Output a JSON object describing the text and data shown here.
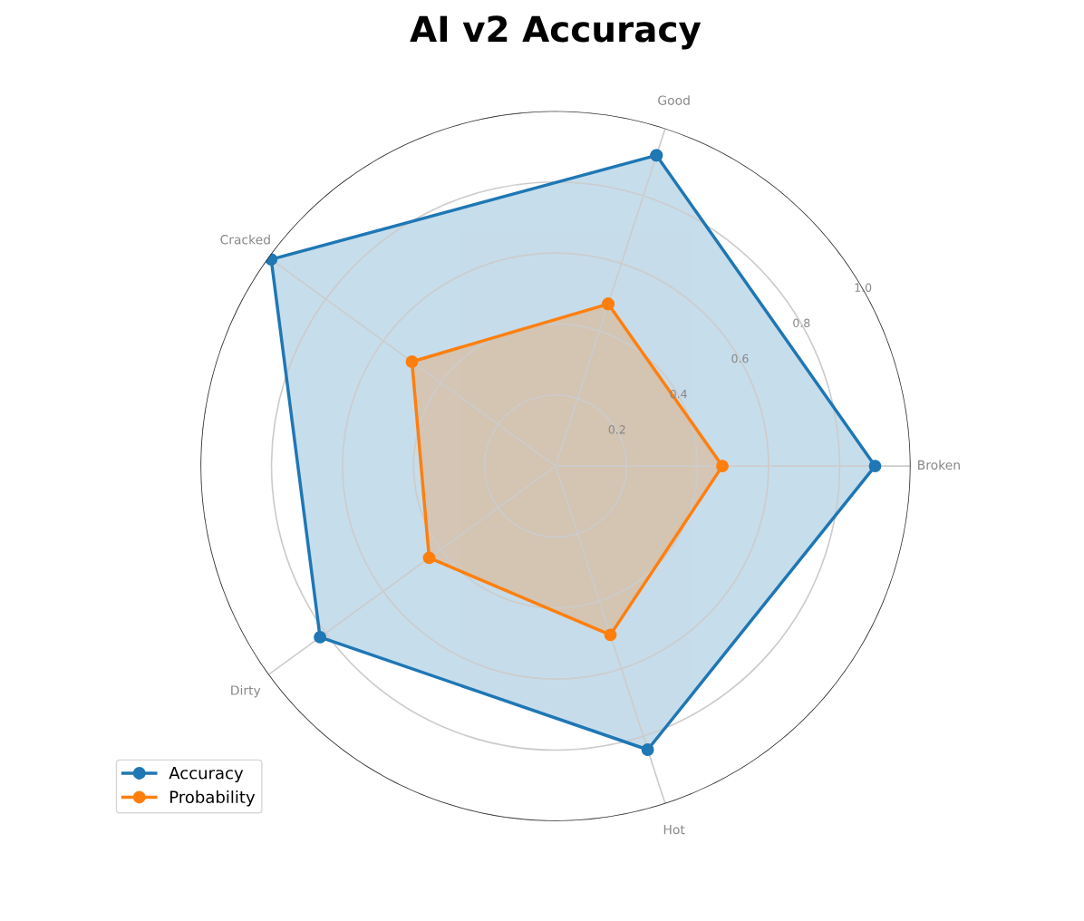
{
  "chart_data": {
    "type": "radar",
    "title": "AI v2 Accuracy",
    "categories": [
      "Good",
      "Broken",
      "Hot",
      "Dirty",
      "Cracked"
    ],
    "series": [
      {
        "name": "Accuracy",
        "color": "#1f77b4",
        "values": [
          0.92,
          0.9,
          0.84,
          0.82,
          0.99
        ]
      },
      {
        "name": "Probability",
        "color": "#ff7f0e",
        "values": [
          0.48,
          0.47,
          0.5,
          0.44,
          0.5
        ]
      }
    ],
    "ylim": [
      0,
      1.0
    ],
    "yticks": [
      0.2,
      0.4,
      0.6,
      0.8,
      {
        "value": 1,
        "label": "1.0"
      }
    ],
    "grid": true,
    "legend": "bottom left",
    "marker": "circle",
    "line_style": "solid"
  }
}
